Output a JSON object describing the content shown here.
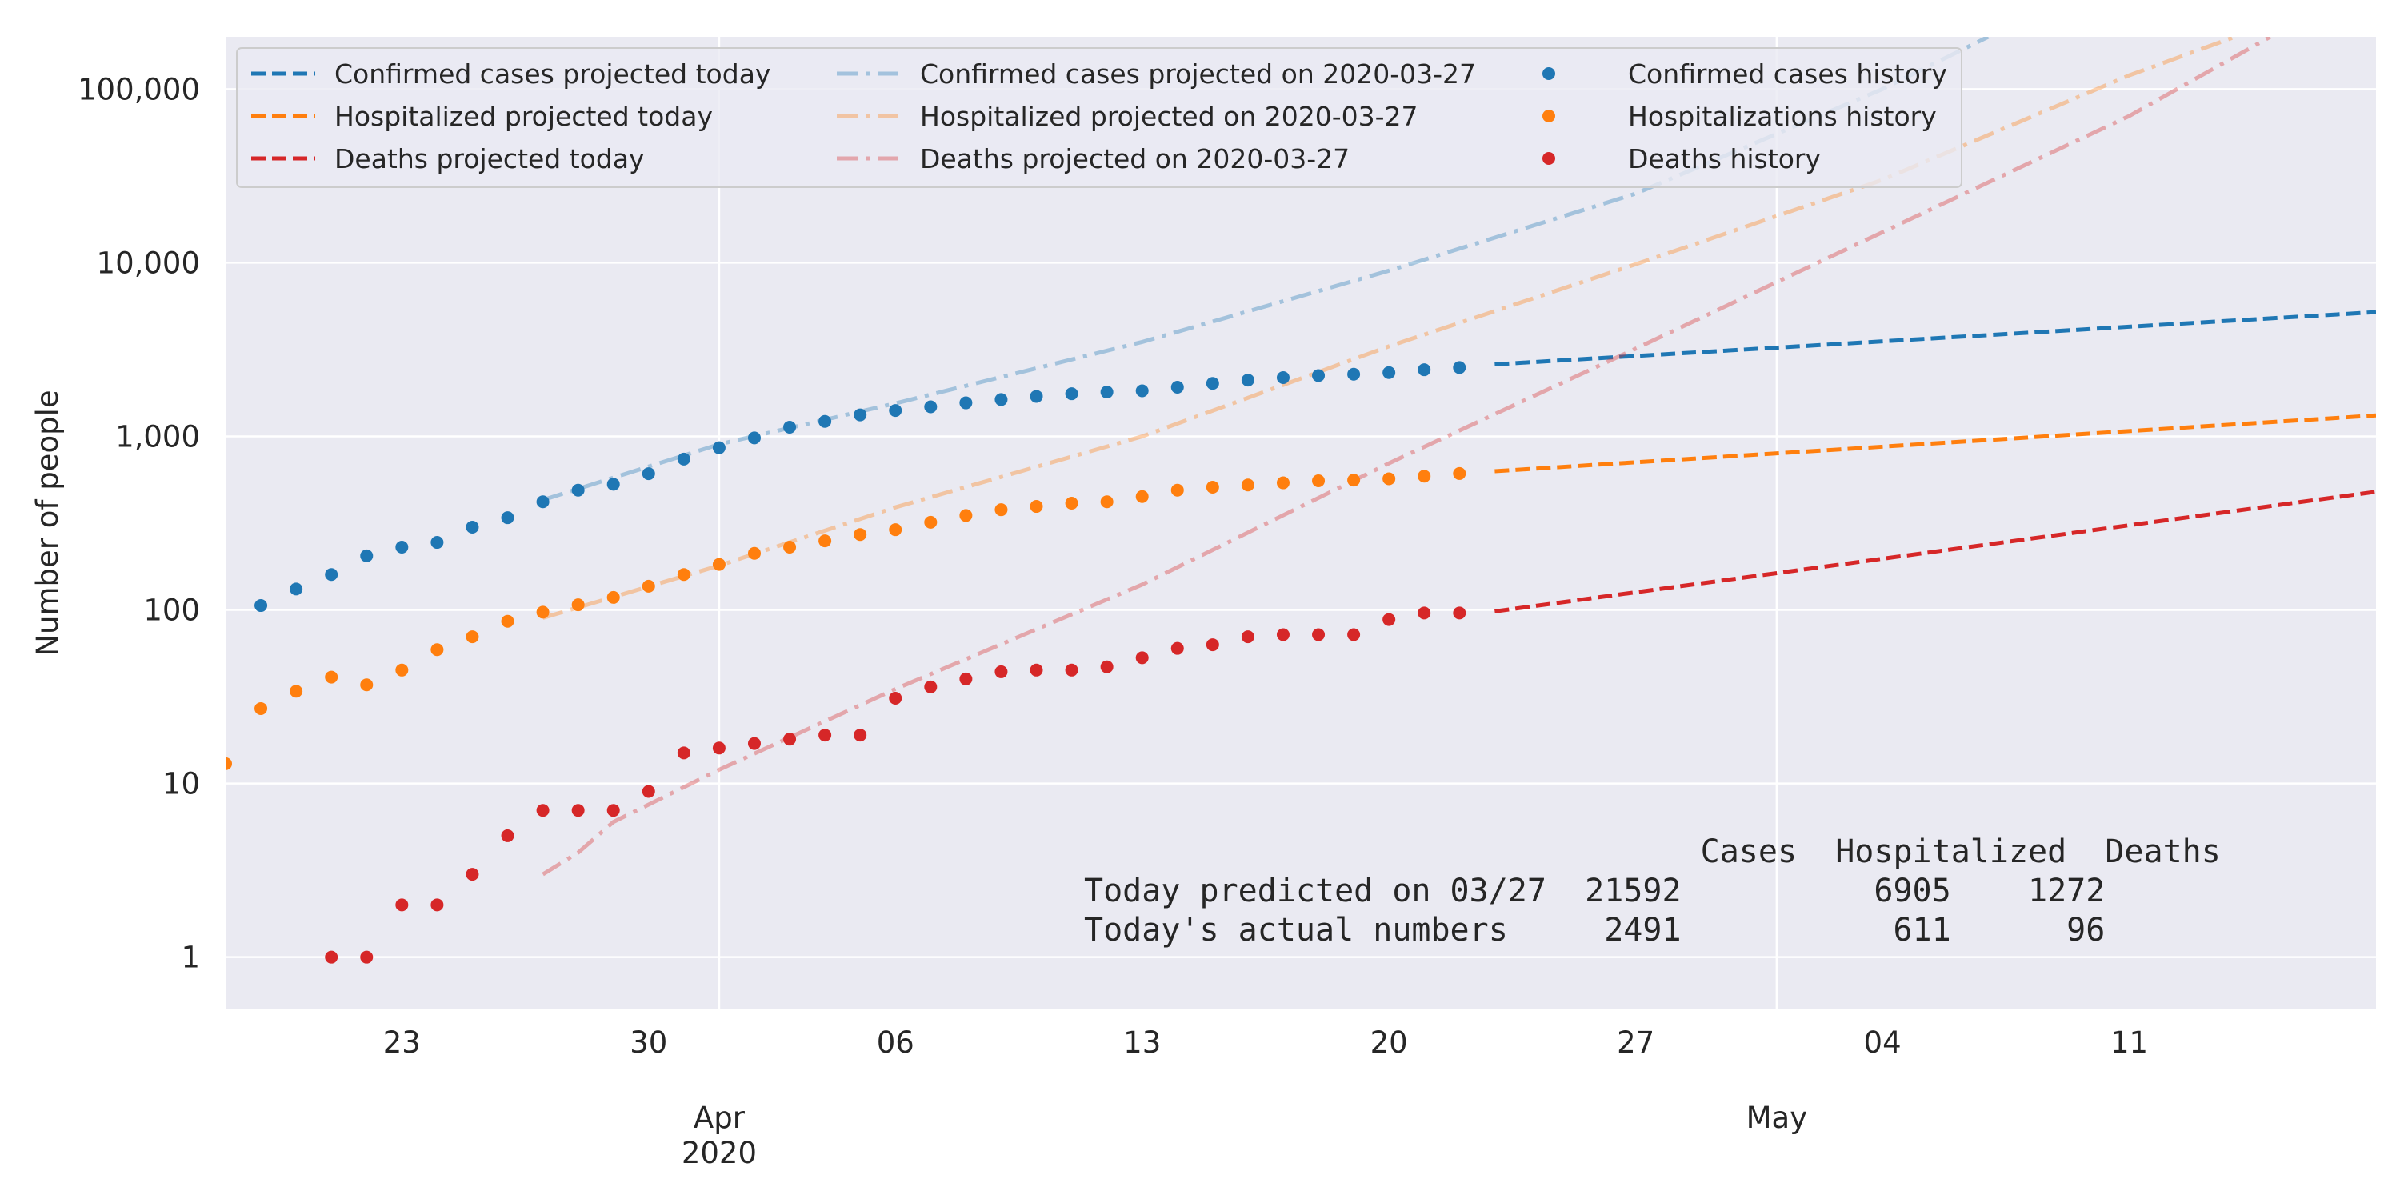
{
  "chart_data": {
    "type": "line",
    "yscale": "log",
    "ylabel": "Number of people",
    "ylim": [
      0.5,
      200000
    ],
    "xlim": [
      "2020-03-18",
      "2020-05-18"
    ],
    "grid": true,
    "yticks": [
      {
        "value": 1,
        "label": "1"
      },
      {
        "value": 10,
        "label": "10"
      },
      {
        "value": 100,
        "label": "100"
      },
      {
        "value": 1000,
        "label": "1,000"
      },
      {
        "value": 10000,
        "label": "10,000"
      },
      {
        "value": 100000,
        "label": "100,000"
      }
    ],
    "xticks_minor": [
      {
        "date": "2020-03-23",
        "label": "23"
      },
      {
        "date": "2020-03-30",
        "label": "30"
      },
      {
        "date": "2020-04-06",
        "label": "06"
      },
      {
        "date": "2020-04-13",
        "label": "13"
      },
      {
        "date": "2020-04-20",
        "label": "20"
      },
      {
        "date": "2020-04-27",
        "label": "27"
      },
      {
        "date": "2020-05-04",
        "label": "04"
      },
      {
        "date": "2020-05-11",
        "label": "11"
      }
    ],
    "xticks_major": [
      {
        "date": "2020-04-01",
        "label": "Apr",
        "sublabel": "2020"
      },
      {
        "date": "2020-05-01",
        "label": "May",
        "sublabel": ""
      }
    ],
    "legend_placement": "top-left",
    "series": [
      {
        "name": "Confirmed cases projected today",
        "kind": "dashed",
        "color": "#1f77b4",
        "alpha": 1,
        "x": [
          "2020-04-23",
          "2020-05-18"
        ],
        "y": [
          2600,
          5200
        ]
      },
      {
        "name": "Hospitalized projected today",
        "kind": "dashed",
        "color": "#ff7f0e",
        "alpha": 1,
        "x": [
          "2020-04-23",
          "2020-05-18"
        ],
        "y": [
          630,
          1320
        ]
      },
      {
        "name": "Deaths projected today",
        "kind": "dashed",
        "color": "#d62728",
        "alpha": 1,
        "x": [
          "2020-04-23",
          "2020-05-18"
        ],
        "y": [
          98,
          480
        ]
      },
      {
        "name": "Confirmed cases projected on 2020-03-27",
        "kind": "dashdot",
        "color": "#1f77b4",
        "alpha": 0.35,
        "x": [
          "2020-03-27",
          "2020-04-01",
          "2020-04-06",
          "2020-04-13",
          "2020-04-20",
          "2020-04-27",
          "2020-05-04",
          "2020-05-07"
        ],
        "y": [
          430,
          900,
          1550,
          3500,
          9000,
          25000,
          100000,
          200000
        ]
      },
      {
        "name": "Hospitalized projected on 2020-03-27",
        "kind": "dashdot",
        "color": "#ff7f0e",
        "alpha": 0.35,
        "x": [
          "2020-03-27",
          "2020-04-01",
          "2020-04-06",
          "2020-04-13",
          "2020-04-20",
          "2020-04-27",
          "2020-05-04",
          "2020-05-11",
          "2020-05-14"
        ],
        "y": [
          90,
          180,
          390,
          1000,
          3300,
          9800,
          30000,
          120000,
          200000
        ]
      },
      {
        "name": "Deaths projected on 2020-03-27",
        "kind": "dashdot",
        "color": "#d62728",
        "alpha": 0.35,
        "x": [
          "2020-03-27",
          "2020-03-28",
          "2020-03-29",
          "2020-04-01",
          "2020-04-06",
          "2020-04-13",
          "2020-04-20",
          "2020-04-27",
          "2020-05-04",
          "2020-05-11",
          "2020-05-15"
        ],
        "y": [
          3,
          4,
          6,
          12,
          35,
          140,
          700,
          3200,
          15000,
          70000,
          200000
        ]
      },
      {
        "name": "Confirmed cases history",
        "kind": "points",
        "color": "#1f77b4",
        "alpha": 1,
        "x": [
          "2020-03-19",
          "2020-03-20",
          "2020-03-21",
          "2020-03-22",
          "2020-03-23",
          "2020-03-24",
          "2020-03-25",
          "2020-03-26",
          "2020-03-27",
          "2020-03-28",
          "2020-03-29",
          "2020-03-30",
          "2020-03-31",
          "2020-04-01",
          "2020-04-02",
          "2020-04-03",
          "2020-04-04",
          "2020-04-05",
          "2020-04-06",
          "2020-04-07",
          "2020-04-08",
          "2020-04-09",
          "2020-04-10",
          "2020-04-11",
          "2020-04-12",
          "2020-04-13",
          "2020-04-14",
          "2020-04-15",
          "2020-04-16",
          "2020-04-17",
          "2020-04-18",
          "2020-04-19",
          "2020-04-20",
          "2020-04-21",
          "2020-04-22"
        ],
        "y": [
          106,
          132,
          160,
          205,
          230,
          245,
          300,
          340,
          420,
          490,
          530,
          610,
          740,
          860,
          980,
          1130,
          1220,
          1330,
          1410,
          1480,
          1560,
          1630,
          1700,
          1760,
          1800,
          1830,
          1920,
          2020,
          2110,
          2180,
          2240,
          2280,
          2330,
          2420,
          2491
        ]
      },
      {
        "name": "Hospitalizations history",
        "kind": "points",
        "color": "#ff7f0e",
        "alpha": 1,
        "x": [
          "2020-03-18",
          "2020-03-19",
          "2020-03-20",
          "2020-03-21",
          "2020-03-22",
          "2020-03-23",
          "2020-03-24",
          "2020-03-25",
          "2020-03-26",
          "2020-03-27",
          "2020-03-28",
          "2020-03-29",
          "2020-03-30",
          "2020-03-31",
          "2020-04-01",
          "2020-04-02",
          "2020-04-03",
          "2020-04-04",
          "2020-04-05",
          "2020-04-06",
          "2020-04-07",
          "2020-04-08",
          "2020-04-09",
          "2020-04-10",
          "2020-04-11",
          "2020-04-12",
          "2020-04-13",
          "2020-04-14",
          "2020-04-15",
          "2020-04-16",
          "2020-04-17",
          "2020-04-18",
          "2020-04-19",
          "2020-04-20",
          "2020-04-21",
          "2020-04-22"
        ],
        "y": [
          13,
          27,
          34,
          41,
          37,
          45,
          59,
          70,
          86,
          97,
          107,
          118,
          137,
          160,
          183,
          212,
          230,
          250,
          272,
          290,
          320,
          350,
          378,
          395,
          412,
          420,
          450,
          490,
          510,
          525,
          540,
          555,
          560,
          570,
          590,
          611
        ]
      },
      {
        "name": "Deaths history",
        "kind": "points",
        "color": "#d62728",
        "alpha": 1,
        "x": [
          "2020-03-21",
          "2020-03-22",
          "2020-03-23",
          "2020-03-24",
          "2020-03-25",
          "2020-03-26",
          "2020-03-27",
          "2020-03-28",
          "2020-03-29",
          "2020-03-30",
          "2020-03-31",
          "2020-04-01",
          "2020-04-02",
          "2020-04-03",
          "2020-04-04",
          "2020-04-05",
          "2020-04-06",
          "2020-04-07",
          "2020-04-08",
          "2020-04-09",
          "2020-04-10",
          "2020-04-11",
          "2020-04-12",
          "2020-04-13",
          "2020-04-14",
          "2020-04-15",
          "2020-04-16",
          "2020-04-17",
          "2020-04-18",
          "2020-04-19",
          "2020-04-20",
          "2020-04-21",
          "2020-04-22"
        ],
        "y": [
          1,
          1,
          2,
          2,
          3,
          5,
          7,
          7,
          7,
          9,
          15,
          16,
          17,
          18,
          19,
          19,
          31,
          36,
          40,
          44,
          45,
          45,
          47,
          53,
          60,
          63,
          70,
          72,
          72,
          72,
          88,
          96,
          96
        ]
      }
    ],
    "summary_table": {
      "header": "                                Cases  Hospitalized  Deaths",
      "row1": "Today predicted on 03/27  21592          6905    1272",
      "row2": "Today's actual numbers     2491           611      96"
    }
  },
  "colors": {
    "plot_background": "#eaeaf2",
    "grid": "#ffffff",
    "text": "#262626"
  }
}
